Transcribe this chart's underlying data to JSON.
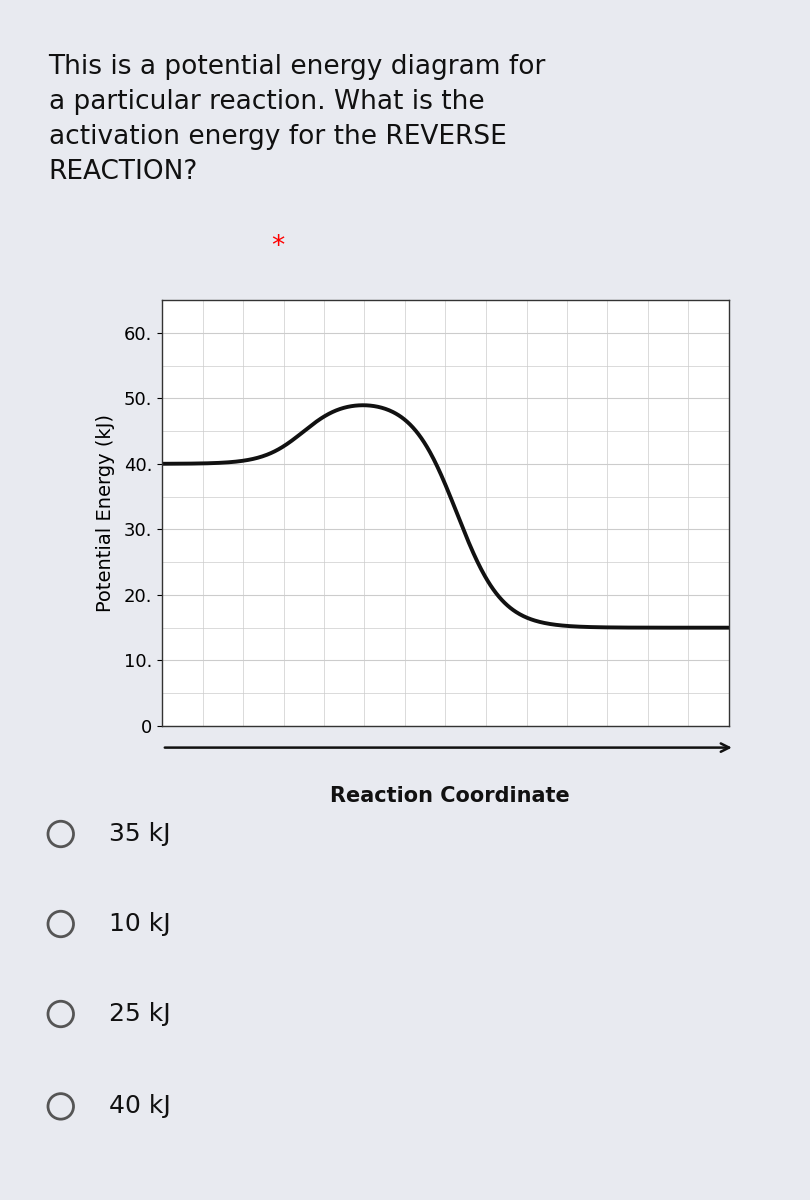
{
  "title_line1": "This is a potential energy diagram for",
  "title_line2": "a particular reaction. What is the",
  "title_line3": "activation energy for the REVERSE",
  "title_line4": "REACTION?",
  "title_asterisk": "*",
  "ylabel": "Potential Energy (kJ)",
  "xlabel": "Reaction Coordinate",
  "yticks": [
    0,
    10,
    20,
    30,
    40,
    50,
    60
  ],
  "ytick_labels": [
    "0",
    "10.",
    "20.",
    "30.",
    "40.",
    "50.",
    "60."
  ],
  "ylim": [
    0,
    65
  ],
  "xlim": [
    0,
    10
  ],
  "background_color": "#ffffff",
  "page_background": "#e8eaf0",
  "grid_color": "#cccccc",
  "curve_color": "#111111",
  "choices": [
    "35 kJ",
    "10 kJ",
    "25 kJ",
    "40 kJ"
  ],
  "title_fontsize": 19,
  "axis_label_fontsize": 14,
  "choice_fontsize": 18,
  "ytick_fontsize": 13
}
